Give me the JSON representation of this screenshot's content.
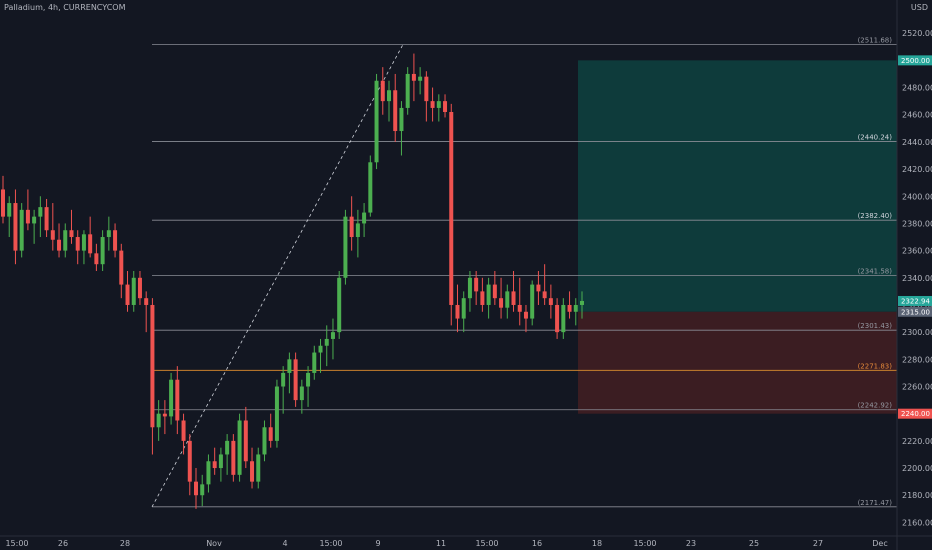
{
  "header": {
    "symbol_title": "Palladium, 4h, CURRENCYCOM",
    "currency": "USD"
  },
  "colors": {
    "background": "#131722",
    "up": "#4caf50",
    "down": "#ef5350",
    "target_zone": "#0e3b3b",
    "stop_zone": "#3b1d22",
    "fib_line": "#8a8d96",
    "fib_orange": "#c8802d"
  },
  "chart_data": {
    "type": "candlestick",
    "ylim": [
      2150,
      2540
    ],
    "y_ticks": [
      2160,
      2180,
      2200,
      2220,
      2240,
      2260,
      2280,
      2300,
      2320,
      2340,
      2360,
      2380,
      2400,
      2420,
      2440,
      2460,
      2480,
      2500,
      2520
    ],
    "x_tick_labels": [
      "15:00",
      "26",
      "28",
      "Nov",
      "4",
      "15:00",
      "9",
      "11",
      "15:00",
      "16",
      "18",
      "15:00",
      "23",
      "25",
      "27",
      "Dec"
    ],
    "fib_levels": [
      {
        "label": "(2511.68)",
        "value": 2511.68
      },
      {
        "label": "(2440.24)",
        "value": 2440.24
      },
      {
        "label": "(2382.40)",
        "value": 2382.4
      },
      {
        "label": "(2341.58)",
        "value": 2341.58
      },
      {
        "label": "(2301.43)",
        "value": 2301.43
      },
      {
        "label": "(2271.83)",
        "value": 2271.83
      },
      {
        "label": "(2242.92)",
        "value": 2242.92
      },
      {
        "label": "(2171.47)",
        "value": 2171.47
      }
    ],
    "price_tags": [
      {
        "label": "2500.00",
        "value": 2500.0,
        "color": "#26a69a"
      },
      {
        "label": "2322.94",
        "value": 2322.94,
        "color": "#26a69a"
      },
      {
        "label": "2315.00",
        "value": 2315.0,
        "color": "#5a6374"
      },
      {
        "label": "2240.00",
        "value": 2240.0,
        "color": "#ef5350"
      }
    ],
    "position": {
      "entry": 2315.0,
      "target": 2500.0,
      "stop": 2240.0
    },
    "candles": [
      [
        2405,
        2415,
        2380,
        2385
      ],
      [
        2385,
        2400,
        2370,
        2395
      ],
      [
        2395,
        2405,
        2350,
        2360
      ],
      [
        2360,
        2395,
        2355,
        2390
      ],
      [
        2390,
        2405,
        2375,
        2380
      ],
      [
        2380,
        2390,
        2365,
        2385
      ],
      [
        2385,
        2400,
        2370,
        2392
      ],
      [
        2392,
        2398,
        2370,
        2375
      ],
      [
        2375,
        2395,
        2360,
        2368
      ],
      [
        2368,
        2380,
        2355,
        2360
      ],
      [
        2360,
        2380,
        2355,
        2375
      ],
      [
        2375,
        2390,
        2365,
        2370
      ],
      [
        2370,
        2375,
        2350,
        2360
      ],
      [
        2360,
        2375,
        2350,
        2372
      ],
      [
        2372,
        2385,
        2355,
        2358
      ],
      [
        2358,
        2365,
        2345,
        2350
      ],
      [
        2350,
        2375,
        2345,
        2370
      ],
      [
        2370,
        2385,
        2360,
        2375
      ],
      [
        2375,
        2380,
        2355,
        2360
      ],
      [
        2360,
        2365,
        2325,
        2335
      ],
      [
        2335,
        2345,
        2315,
        2320
      ],
      [
        2320,
        2345,
        2315,
        2340
      ],
      [
        2340,
        2345,
        2320,
        2325
      ],
      [
        2325,
        2330,
        2300,
        2320
      ],
      [
        2320,
        2325,
        2210,
        2230
      ],
      [
        2230,
        2250,
        2220,
        2240
      ],
      [
        2240,
        2250,
        2225,
        2238
      ],
      [
        2238,
        2270,
        2232,
        2265
      ],
      [
        2265,
        2275,
        2225,
        2235
      ],
      [
        2235,
        2240,
        2210,
        2220
      ],
      [
        2220,
        2225,
        2180,
        2190
      ],
      [
        2190,
        2200,
        2170,
        2180
      ],
      [
        2180,
        2195,
        2172,
        2188
      ],
      [
        2188,
        2210,
        2182,
        2205
      ],
      [
        2205,
        2215,
        2195,
        2200
      ],
      [
        2200,
        2215,
        2190,
        2210
      ],
      [
        2210,
        2225,
        2195,
        2220
      ],
      [
        2220,
        2225,
        2190,
        2195
      ],
      [
        2195,
        2240,
        2190,
        2235
      ],
      [
        2235,
        2245,
        2200,
        2205
      ],
      [
        2205,
        2215,
        2185,
        2190
      ],
      [
        2190,
        2215,
        2185,
        2210
      ],
      [
        2210,
        2235,
        2205,
        2230
      ],
      [
        2230,
        2240,
        2215,
        2220
      ],
      [
        2220,
        2265,
        2215,
        2260
      ],
      [
        2260,
        2275,
        2240,
        2270
      ],
      [
        2270,
        2285,
        2255,
        2280
      ],
      [
        2280,
        2285,
        2245,
        2250
      ],
      [
        2250,
        2265,
        2240,
        2260
      ],
      [
        2260,
        2275,
        2245,
        2270
      ],
      [
        2270,
        2290,
        2265,
        2285
      ],
      [
        2285,
        2295,
        2270,
        2290
      ],
      [
        2290,
        2305,
        2275,
        2295
      ],
      [
        2295,
        2310,
        2280,
        2300
      ],
      [
        2300,
        2345,
        2295,
        2340
      ],
      [
        2340,
        2390,
        2335,
        2385
      ],
      [
        2385,
        2400,
        2360,
        2370
      ],
      [
        2370,
        2390,
        2355,
        2380
      ],
      [
        2380,
        2395,
        2370,
        2388
      ],
      [
        2388,
        2430,
        2385,
        2425
      ],
      [
        2425,
        2490,
        2420,
        2485
      ],
      [
        2485,
        2495,
        2460,
        2470
      ],
      [
        2470,
        2485,
        2455,
        2478
      ],
      [
        2478,
        2490,
        2440,
        2448
      ],
      [
        2448,
        2470,
        2430,
        2465
      ],
      [
        2465,
        2495,
        2460,
        2490
      ],
      [
        2490,
        2505,
        2470,
        2485
      ],
      [
        2485,
        2495,
        2475,
        2488
      ],
      [
        2488,
        2492,
        2455,
        2470
      ],
      [
        2470,
        2480,
        2455,
        2465
      ],
      [
        2465,
        2475,
        2455,
        2470
      ],
      [
        2470,
        2475,
        2458,
        2462
      ],
      [
        2462,
        2468,
        2305,
        2320
      ],
      [
        2320,
        2335,
        2300,
        2310
      ],
      [
        2310,
        2330,
        2300,
        2325
      ],
      [
        2325,
        2345,
        2315,
        2340
      ],
      [
        2340,
        2345,
        2320,
        2330
      ],
      [
        2330,
        2340,
        2315,
        2320
      ],
      [
        2320,
        2340,
        2310,
        2335
      ],
      [
        2335,
        2345,
        2320,
        2325
      ],
      [
        2325,
        2340,
        2310,
        2318
      ],
      [
        2318,
        2335,
        2310,
        2330
      ],
      [
        2330,
        2345,
        2315,
        2320
      ],
      [
        2320,
        2340,
        2305,
        2315
      ],
      [
        2315,
        2320,
        2300,
        2310
      ],
      [
        2310,
        2338,
        2305,
        2335
      ],
      [
        2335,
        2345,
        2320,
        2330
      ],
      [
        2330,
        2350,
        2320,
        2325
      ],
      [
        2325,
        2335,
        2310,
        2320
      ],
      [
        2320,
        2325,
        2295,
        2300
      ],
      [
        2300,
        2325,
        2295,
        2320
      ],
      [
        2320,
        2330,
        2310,
        2315
      ],
      [
        2315,
        2325,
        2305,
        2320
      ],
      [
        2320,
        2330,
        2310,
        2322.94
      ]
    ]
  }
}
